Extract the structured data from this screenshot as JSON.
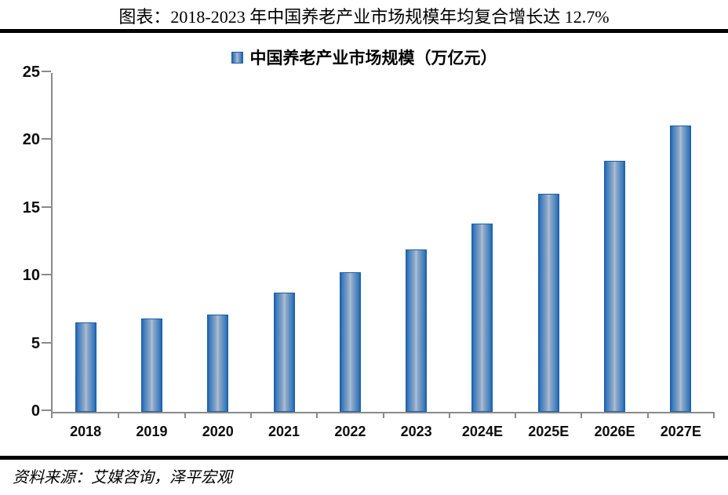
{
  "header": {
    "title": "图表：2018-2023 年中国养老产业市场规模年均复合增长达 12.7%"
  },
  "legend": {
    "label": "中国养老产业市场规模（万亿元）"
  },
  "footer": {
    "source": "资料来源：艾媒咨询，泽平宏观"
  },
  "colors": {
    "bar_edge": "#1E65B0",
    "bar_mid": "#AEC0D5",
    "bar_border": "#1C5FA8",
    "axis": "#8A8A8A",
    "text": "#000000",
    "rule": "#000000"
  },
  "chart_data": {
    "type": "bar",
    "title": "中国养老产业市场规模（万亿元）",
    "categories": [
      "2018",
      "2019",
      "2020",
      "2021",
      "2022",
      "2023",
      "2024E",
      "2025E",
      "2026E",
      "2027E"
    ],
    "values": [
      6.6,
      6.9,
      7.2,
      8.8,
      10.3,
      12.0,
      13.9,
      16.1,
      18.5,
      21.1
    ],
    "xlabel": "",
    "ylabel": "",
    "ylim": [
      0,
      25
    ],
    "yticks": [
      0,
      5,
      10,
      15,
      20,
      25
    ],
    "grid": false,
    "legend_position": "top"
  }
}
